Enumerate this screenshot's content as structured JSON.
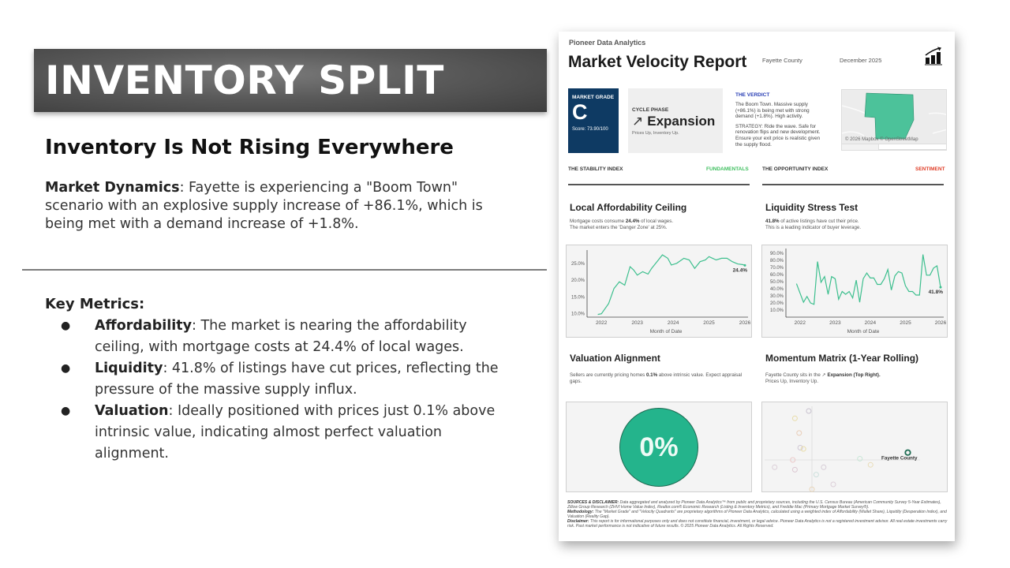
{
  "slide": {
    "title": "INVENTORY SPLIT",
    "subtitle": "Inventory Is Not Rising Everywhere",
    "market_dynamics": {
      "label": "Market Dynamics",
      "text": ": Fayette is experiencing a \"Boom Town\" scenario with an explosive supply increase of +86.1%, which is being met with a demand increase of +1.8%."
    },
    "key_metrics_heading": "Key Metrics:",
    "key_metrics": [
      {
        "label": "Affordability",
        "text": ": The market is nearing the affordability ceiling, with mortgage costs at 24.4% of local wages."
      },
      {
        "label": "Liquidity",
        "text": ": 41.8% of listings have cut prices, reflecting the pressure of the massive supply influx."
      },
      {
        "label": "Valuation",
        "text": ": Ideally positioned with prices just 0.1% above intrinsic value, indicating almost perfect valuation alignment."
      }
    ]
  },
  "report": {
    "brand": "Pioneer Data Analytics",
    "title": "Market Velocity Report",
    "county": "Fayette County",
    "date": "December 2025",
    "logo_icon": "bar-chart-growth-icon",
    "grade": {
      "label": "MARKET GRADE",
      "value": "C",
      "score": "Score: 73.90/100"
    },
    "cycle": {
      "label": "CYCLE PHASE",
      "arrow": "↗",
      "value": "Expansion",
      "sub": "Prices Up, Inventory Up."
    },
    "verdict": {
      "label": "THE VERDICT",
      "text": "The Boom Town. Massive supply (+86.1%) is being met with strong demand (+1.8%). High activity.",
      "strategy": "STRATEGY: Ride the wave. Safe for renovation flips and new development. Ensure your exit price is realistic given the supply flood."
    },
    "map": {
      "credit": "© 2026 Mapbox © OpenStreetMap",
      "fill": "#4cc29a"
    },
    "stability": {
      "label": "THE STABILITY INDEX",
      "tag": "FUNDAMENTALS",
      "tag_color": "#3fbf5f"
    },
    "opportunity": {
      "label": "THE OPPORTUNITY INDEX",
      "tag": "SENTIMENT",
      "tag_color": "#e0402a"
    },
    "affordability": {
      "title": "Local Affordability Ceiling",
      "desc_pre": "Mortgage costs consume ",
      "desc_bold": "24.4%",
      "desc_post": " of local wages.",
      "desc_line2": "The market enters the 'Danger Zone' at 25%."
    },
    "liquidity": {
      "title": "Liquidity Stress Test",
      "desc_bold": "41.8%",
      "desc_post": " of active listings have cut their price.",
      "desc_line2": "This is a leading indicator of buyer leverage."
    },
    "valuation": {
      "title": "Valuation Alignment",
      "desc_pre": "Sellers are currently pricing homes ",
      "desc_bold": "0.1%",
      "desc_post": " above intrinsic value. Expect appraisal gaps.",
      "gauge_value": "0%"
    },
    "momentum": {
      "title": "Momentum Matrix (1-Year Rolling)",
      "desc_pre": "Fayette County sits in the ↗ ",
      "desc_bold": "Expansion (Top Right).",
      "desc_line2": "Prices Up, Inventory Up.",
      "highlight_label": "Fayette County"
    },
    "footer": {
      "sources_label": "SOURCES & DISCLAIMER:",
      "sources_text": " Data aggregated and analyzed by Pioneer Data Analytics™ from public and proprietary sources, including the U.S. Census Bureau (American Community Survey 5-Year Estimates), Zillow Group Research (ZHVI Home Value Index), Realtor.com® Economic Research (Listing & Inventory Metrics), and Freddie Mac (Primary Mortgage Market Survey®).",
      "methodology_label": "Methodology:",
      "methodology_text": " The \"Market Grade\" and \"Velocity Quadrants\" are proprietary algorithms of Pioneer Data Analytics, calculated using a weighted index of Affordability (Wallet Share), Liquidity (Desperation Index), and Valuation (Reality Gap).",
      "disclaimer_label": "Disclaimer:",
      "disclaimer_text": " This report is for informational purposes only and does not constitute financial, investment, or legal advice. Pioneer Data Analytics is not a registered investment advisor. All real estate investments carry risk. Past market performance is not indicative of future results. © 2025 Pioneer Data Analytics. All Rights Reserved."
    }
  },
  "chart_data": [
    {
      "type": "line",
      "title": "Local Affordability Ceiling",
      "xlabel": "Month of Date",
      "ylabel": "",
      "x_ticks": [
        "2022",
        "2023",
        "2024",
        "2025",
        "2026"
      ],
      "y_ticks": [
        "10.0%",
        "15.0%",
        "20.0%",
        "25.0%"
      ],
      "ylim": [
        9,
        28
      ],
      "end_label": "24.4%",
      "color": "#3dbf8e",
      "x": [
        2021.9,
        2022.0,
        2022.2,
        2022.35,
        2022.5,
        2022.65,
        2022.8,
        2022.9,
        2023.0,
        2023.15,
        2023.3,
        2023.4,
        2023.55,
        2023.7,
        2023.85,
        2023.95,
        2024.1,
        2024.3,
        2024.45,
        2024.6,
        2024.75,
        2024.9,
        2025.0,
        2025.1,
        2025.2,
        2025.35,
        2025.5,
        2025.65,
        2025.8,
        2025.95,
        2026.0
      ],
      "values": [
        9.8,
        10.0,
        13.0,
        17.5,
        19.5,
        18.5,
        24.0,
        23.0,
        21.5,
        22.5,
        21.8,
        23.5,
        25.5,
        27.5,
        26.5,
        24.5,
        25.0,
        26.5,
        26.0,
        23.5,
        25.5,
        26.0,
        27.0,
        26.5,
        26.0,
        26.5,
        26.5,
        25.5,
        24.8,
        24.6,
        24.4
      ]
    },
    {
      "type": "line",
      "title": "Liquidity Stress Test",
      "xlabel": "Month of Date",
      "ylabel": "",
      "x_ticks": [
        "2022",
        "2023",
        "2024",
        "2025",
        "2026"
      ],
      "y_ticks": [
        "10.0%",
        "20.0%",
        "30.0%",
        "40.0%",
        "50.0%",
        "60.0%",
        "70.0%",
        "80.0%",
        "90.0%"
      ],
      "ylim": [
        0,
        92
      ],
      "end_label": "41.8%",
      "color": "#3dbf8e",
      "x": [
        2021.9,
        2022.0,
        2022.1,
        2022.2,
        2022.3,
        2022.4,
        2022.5,
        2022.6,
        2022.7,
        2022.8,
        2022.9,
        2023.0,
        2023.1,
        2023.2,
        2023.3,
        2023.4,
        2023.5,
        2023.6,
        2023.7,
        2023.8,
        2023.9,
        2024.0,
        2024.1,
        2024.2,
        2024.3,
        2024.4,
        2024.5,
        2024.6,
        2024.7,
        2024.8,
        2024.9,
        2025.0,
        2025.1,
        2025.2,
        2025.3,
        2025.4,
        2025.5,
        2025.6,
        2025.7,
        2025.8,
        2025.9,
        2026.0
      ],
      "values": [
        47,
        34,
        21,
        29,
        20,
        18,
        78,
        49,
        57,
        32,
        57,
        54,
        25,
        36,
        32,
        36,
        27,
        52,
        21,
        54,
        62,
        55,
        55,
        46,
        46,
        54,
        67,
        38,
        58,
        64,
        62,
        44,
        36,
        36,
        31,
        31,
        88,
        59,
        59,
        69,
        72,
        42
      ]
    },
    {
      "type": "gauge",
      "title": "Valuation Alignment",
      "value_label": "0%",
      "value": 0.1,
      "color": "#24b48c"
    },
    {
      "type": "scatter",
      "title": "Momentum Matrix (1-Year Rolling)",
      "points": [
        {
          "x": -1.6,
          "y": 1.7,
          "color": "#e8dca8"
        },
        {
          "x": -0.3,
          "y": 2.0,
          "color": "#c9c2cf"
        },
        {
          "x": -1.2,
          "y": 1.1,
          "color": "#e9cdb8"
        },
        {
          "x": -1.1,
          "y": 0.5,
          "color": "#cfc7d4"
        },
        {
          "x": -0.8,
          "y": 0.45,
          "color": "#e8dca8"
        },
        {
          "x": -1.8,
          "y": 0.0,
          "color": "#ebc9c9"
        },
        {
          "x": -3.5,
          "y": -0.3,
          "color": "#dccfd8"
        },
        {
          "x": -1.6,
          "y": -0.4,
          "color": "#dcc8d2"
        },
        {
          "x": 0.4,
          "y": -0.6,
          "color": "#cde0dd"
        },
        {
          "x": 1.1,
          "y": -0.3,
          "color": "#d6ccd6"
        },
        {
          "x": 0.0,
          "y": -1.2,
          "color": "#e8d4b8"
        },
        {
          "x": 2.0,
          "y": -1.0,
          "color": "#dccfd8"
        },
        {
          "x": 4.5,
          "y": 0.05,
          "color": "#c8e6d6"
        },
        {
          "x": 5.5,
          "y": -0.2,
          "color": "#e8dcb8"
        },
        {
          "x": 9.0,
          "y": 0.3,
          "color": "#1d6b52",
          "label": "Fayette County"
        }
      ]
    }
  ]
}
